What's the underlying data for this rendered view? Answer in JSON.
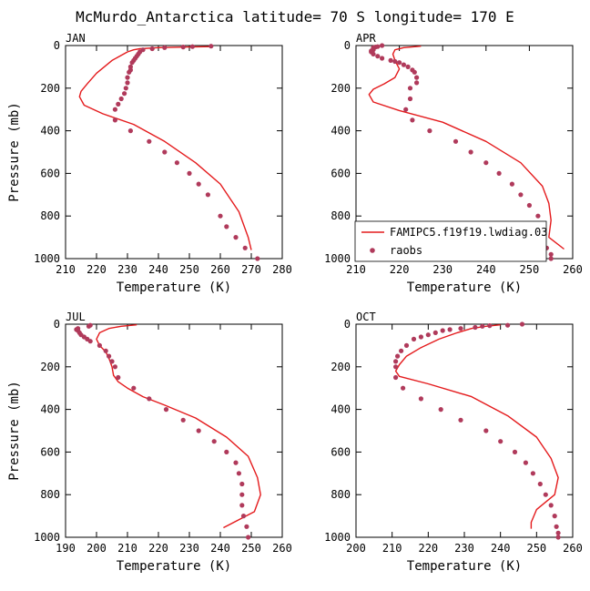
{
  "figure_title": "McMurdo_Antarctica  latitude= 70 S longitude= 170 E",
  "legend": {
    "model_label": "FAMIPC5.f19f19.lwdiag.03",
    "obs_label": "raobs"
  },
  "colors": {
    "model": "#e41a1c",
    "obs": "#b03a5b",
    "axis": "#000000"
  },
  "chart_data": [
    {
      "type": "line+scatter",
      "title": "JAN",
      "xlabel": "Temperature (K)",
      "ylabel": "Pressure (mb)",
      "xlim": [
        210,
        280
      ],
      "ylim": [
        1000,
        0
      ],
      "xticks": [
        210,
        220,
        230,
        240,
        250,
        260,
        270,
        280
      ],
      "yticks": [
        0,
        200,
        400,
        600,
        800,
        1000
      ],
      "series": [
        {
          "name": "FAMIPC5.f19f19.lwdiag.03",
          "kind": "line",
          "x": [
            257,
            250,
            240,
            234,
            232,
            230,
            225,
            220,
            217,
            215,
            214.5,
            216,
            222,
            232,
            242,
            252,
            260,
            266,
            269,
            270
          ],
          "y": [
            5,
            7,
            10,
            15,
            20,
            30,
            70,
            130,
            180,
            215,
            240,
            280,
            320,
            370,
            450,
            550,
            650,
            780,
            900,
            960
          ]
        },
        {
          "name": "raobs",
          "kind": "points",
          "x": [
            257,
            251,
            248,
            242,
            238,
            235,
            234,
            233.5,
            233,
            232.5,
            232,
            231.5,
            231,
            231,
            230.5,
            230,
            230,
            229.5,
            229,
            228,
            227,
            226,
            226,
            231,
            237,
            242,
            246,
            250,
            253,
            256,
            260,
            262,
            265,
            268,
            272
          ],
          "y": [
            3,
            5,
            7,
            10,
            15,
            20,
            30,
            40,
            50,
            60,
            70,
            80,
            100,
            115,
            125,
            150,
            175,
            200,
            225,
            250,
            275,
            300,
            350,
            400,
            450,
            500,
            550,
            600,
            650,
            700,
            800,
            850,
            900,
            950,
            1000
          ]
        }
      ]
    },
    {
      "type": "line+scatter",
      "title": "APR",
      "xlabel": "Temperature (K)",
      "ylabel": "",
      "xlim": [
        210,
        260
      ],
      "ylim": [
        1000,
        0
      ],
      "xticks": [
        210,
        220,
        230,
        240,
        250,
        260
      ],
      "yticks": [
        0,
        200,
        400,
        600,
        800,
        1000
      ],
      "series": [
        {
          "name": "FAMIPC5.f19f19.lwdiag.03",
          "kind": "line",
          "x": [
            225,
            221,
            219,
            218.5,
            219,
            220,
            219,
            216.5,
            214,
            213,
            214,
            220,
            230,
            240,
            248,
            253,
            254.5,
            255,
            254.5,
            258
          ],
          "y": [
            3,
            10,
            20,
            40,
            70,
            110,
            150,
            180,
            205,
            230,
            265,
            305,
            360,
            450,
            550,
            660,
            740,
            820,
            900,
            955
          ]
        },
        {
          "name": "raobs",
          "kind": "points",
          "x": [
            216,
            215,
            214.5,
            214,
            214,
            214,
            213.5,
            213.5,
            214,
            215,
            216,
            218,
            219,
            220,
            221,
            222,
            223,
            223.5,
            224,
            224,
            222.5,
            222.5,
            221.5,
            223,
            227,
            233,
            236.5,
            240,
            243,
            246,
            248,
            250,
            252,
            252,
            253,
            254,
            255,
            255
          ],
          "y": [
            0,
            5,
            7,
            10,
            15,
            20,
            25,
            30,
            40,
            50,
            60,
            70,
            75,
            80,
            90,
            100,
            115,
            125,
            150,
            175,
            200,
            250,
            300,
            350,
            400,
            450,
            500,
            550,
            600,
            650,
            700,
            750,
            800,
            850,
            900,
            950,
            980,
            1000
          ]
        }
      ]
    },
    {
      "type": "line+scatter",
      "title": "JUL",
      "xlabel": "Temperature (K)",
      "ylabel": "Pressure (mb)",
      "xlim": [
        190,
        260
      ],
      "ylim": [
        1000,
        0
      ],
      "xticks": [
        190,
        200,
        210,
        220,
        230,
        240,
        250,
        260
      ],
      "yticks": [
        0,
        200,
        400,
        600,
        800,
        1000
      ],
      "series": [
        {
          "name": "FAMIPC5.f19f19.lwdiag.03",
          "kind": "line",
          "x": [
            213,
            208,
            204,
            201,
            200,
            201,
            203,
            204,
            205,
            205.5,
            207,
            210,
            215,
            222,
            232,
            242,
            249,
            252,
            253,
            251,
            241
          ],
          "y": [
            3,
            10,
            20,
            40,
            70,
            100,
            130,
            160,
            200,
            240,
            270,
            300,
            340,
            380,
            440,
            530,
            620,
            720,
            800,
            880,
            955
          ]
        },
        {
          "name": "raobs",
          "kind": "points",
          "x": [
            198,
            197.5,
            194,
            193.5,
            194,
            194.5,
            195,
            196,
            197,
            198,
            201,
            203,
            204,
            205,
            206,
            207,
            212,
            217,
            222.5,
            228,
            233,
            238,
            242,
            245,
            246,
            247,
            247,
            247,
            247.5,
            248.5,
            249
          ],
          "y": [
            5,
            10,
            20,
            25,
            30,
            40,
            50,
            60,
            70,
            80,
            100,
            125,
            150,
            175,
            200,
            250,
            300,
            350,
            400,
            450,
            500,
            550,
            600,
            650,
            700,
            750,
            800,
            850,
            900,
            950,
            1000
          ]
        }
      ]
    },
    {
      "type": "line+scatter",
      "title": "OCT",
      "xlabel": "Temperature (K)",
      "ylabel": "",
      "xlim": [
        200,
        260
      ],
      "ylim": [
        1000,
        0
      ],
      "xticks": [
        200,
        210,
        220,
        230,
        240,
        250,
        260
      ],
      "yticks": [
        0,
        200,
        400,
        600,
        800,
        1000
      ],
      "series": [
        {
          "name": "FAMIPC5.f19f19.lwdiag.03",
          "kind": "line",
          "x": [
            240,
            236,
            232,
            228,
            223,
            218,
            214,
            212,
            211,
            212,
            220,
            232,
            242,
            250,
            254,
            256,
            255,
            250,
            248.5,
            248.5
          ],
          "y": [
            3,
            10,
            20,
            40,
            70,
            110,
            150,
            190,
            220,
            245,
            280,
            340,
            430,
            530,
            630,
            720,
            800,
            870,
            930,
            960
          ]
        },
        {
          "name": "raobs",
          "kind": "points",
          "x": [
            246,
            242,
            237,
            235,
            233,
            229,
            226,
            224,
            222,
            220,
            218,
            216,
            214,
            212.5,
            211.5,
            211,
            211,
            211,
            213,
            218,
            223.5,
            229,
            236,
            240,
            244,
            247,
            249,
            251,
            252.5,
            254,
            255,
            255.5,
            256,
            256
          ],
          "y": [
            0,
            5,
            7,
            10,
            15,
            20,
            25,
            30,
            40,
            50,
            60,
            70,
            100,
            125,
            150,
            175,
            200,
            250,
            300,
            350,
            400,
            450,
            500,
            550,
            600,
            650,
            700,
            750,
            800,
            850,
            900,
            950,
            980,
            1000
          ]
        }
      ]
    }
  ]
}
